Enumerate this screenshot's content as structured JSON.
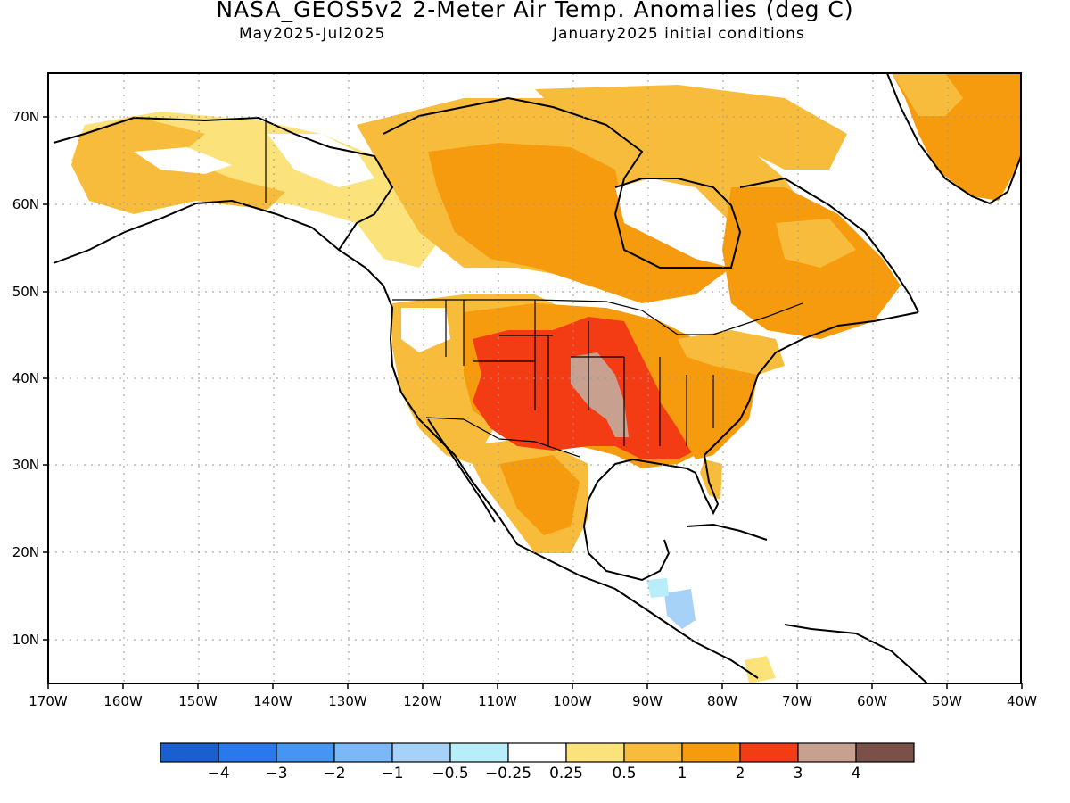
{
  "title": "NASA_GEOS5v2 2-Meter Air Temp. Anomalies (deg C)",
  "subtitle_left": "May2025-Jul2025",
  "subtitle_right": "January2025 initial conditions",
  "lat_labels": [
    "70N",
    "60N",
    "50N",
    "40N",
    "30N",
    "20N",
    "10N"
  ],
  "lon_labels": [
    "170W",
    "160W",
    "150W",
    "140W",
    "130W",
    "120W",
    "110W",
    "100W",
    "90W",
    "80W",
    "70W",
    "60W",
    "50W",
    "40W"
  ],
  "colorbar": {
    "colors": [
      "#1a5fd0",
      "#2a78ee",
      "#4596f2",
      "#7cb8f5",
      "#a6d2f8",
      "#b8eefa",
      "#ffffff",
      "#fbe27a",
      "#f8bc3c",
      "#f69a0e",
      "#f43c14",
      "#c8a090",
      "#7a5048"
    ],
    "labels": [
      "−4",
      "−3",
      "−2",
      "−1",
      "−0.5",
      "−0.25",
      "0.25",
      "0.5",
      "1",
      "2",
      "3",
      "4"
    ]
  },
  "colors": {
    "ocean": "#ffffff",
    "land_neutral": "#ffffff",
    "coast": "#000000",
    "grid": "#9a9a9a"
  }
}
